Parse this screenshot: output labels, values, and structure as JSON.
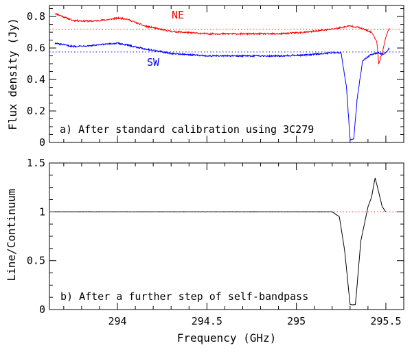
{
  "chart_data": [
    {
      "type": "line",
      "panel_label": "a) After standard calibration using 3C279",
      "title": "",
      "xlabel": "",
      "ylabel": "Flux density (Jy)",
      "xlim": [
        293.62,
        295.6
      ],
      "ylim": [
        0,
        0.87
      ],
      "xticks": [
        294,
        294.5,
        295,
        295.5
      ],
      "yticks": [
        0,
        0.2,
        0.4,
        0.6,
        0.8
      ],
      "yticklabels": [
        "0",
        "0.2",
        "0.4",
        "0.6",
        "0.8"
      ],
      "grid": false,
      "series": [
        {
          "name": "NE",
          "color": "#ff0000",
          "x": [
            293.65,
            293.75,
            293.85,
            293.95,
            294.0,
            294.05,
            294.15,
            294.3,
            294.5,
            294.7,
            294.9,
            295.05,
            295.2,
            295.3,
            295.35,
            295.42,
            295.45,
            295.46,
            295.48,
            295.5,
            295.52
          ],
          "y": [
            0.82,
            0.775,
            0.77,
            0.78,
            0.79,
            0.785,
            0.74,
            0.705,
            0.69,
            0.69,
            0.69,
            0.7,
            0.72,
            0.74,
            0.73,
            0.7,
            0.64,
            0.5,
            0.57,
            0.67,
            0.73
          ]
        },
        {
          "name": "SW",
          "color": "#0000ff",
          "x": [
            293.65,
            293.75,
            293.85,
            293.95,
            294.0,
            294.05,
            294.15,
            294.3,
            294.5,
            294.7,
            294.9,
            295.05,
            295.2,
            295.25,
            295.28,
            295.3,
            295.32,
            295.34,
            295.37,
            295.42,
            295.46,
            295.48,
            295.5,
            295.52
          ],
          "y": [
            0.63,
            0.61,
            0.615,
            0.625,
            0.63,
            0.62,
            0.595,
            0.565,
            0.55,
            0.55,
            0.55,
            0.555,
            0.57,
            0.57,
            0.35,
            0.02,
            0.02,
            0.28,
            0.52,
            0.56,
            0.57,
            0.56,
            0.57,
            0.6
          ]
        }
      ],
      "reference_lines": [
        {
          "y": 0.72,
          "color": "#ff0000",
          "style": "dotted"
        },
        {
          "y": 0.575,
          "color": "#0000ff",
          "style": "dotted"
        }
      ]
    },
    {
      "type": "line",
      "panel_label": "b) After a further step of self-bandpass",
      "title": "",
      "xlabel": "Frequency (GHz)",
      "ylabel": "Line/Continuum",
      "xlim": [
        293.62,
        295.6
      ],
      "ylim": [
        0,
        1.5
      ],
      "xticks": [
        294,
        294.5,
        295,
        295.5
      ],
      "xticklabels": [
        "294",
        "294.5",
        "295",
        "295.5"
      ],
      "yticks": [
        0,
        0.5,
        1,
        1.5
      ],
      "yticklabels": [
        "0",
        "0.5",
        "1",
        "1.5"
      ],
      "grid": false,
      "series": [
        {
          "name": "Line/Continuum",
          "color": "#000000",
          "x": [
            293.65,
            294.0,
            294.5,
            295.0,
            295.2,
            295.24,
            295.27,
            295.3,
            295.33,
            295.36,
            295.4,
            295.42,
            295.44,
            295.46,
            295.48,
            295.5
          ],
          "y": [
            1.0,
            1.0,
            1.0,
            1.0,
            1.0,
            0.95,
            0.6,
            0.05,
            0.05,
            0.7,
            1.05,
            1.15,
            1.35,
            1.2,
            1.05,
            1.0
          ]
        }
      ],
      "reference_lines": [
        {
          "y": 1.0,
          "color": "#ff0000",
          "style": "dotted"
        }
      ]
    }
  ],
  "annotations": {
    "ne_label": "NE",
    "sw_label": "SW"
  },
  "colors": {
    "ne": "#ff0000",
    "sw": "#0000ff",
    "ratio": "#000000",
    "axis": "#000000"
  }
}
